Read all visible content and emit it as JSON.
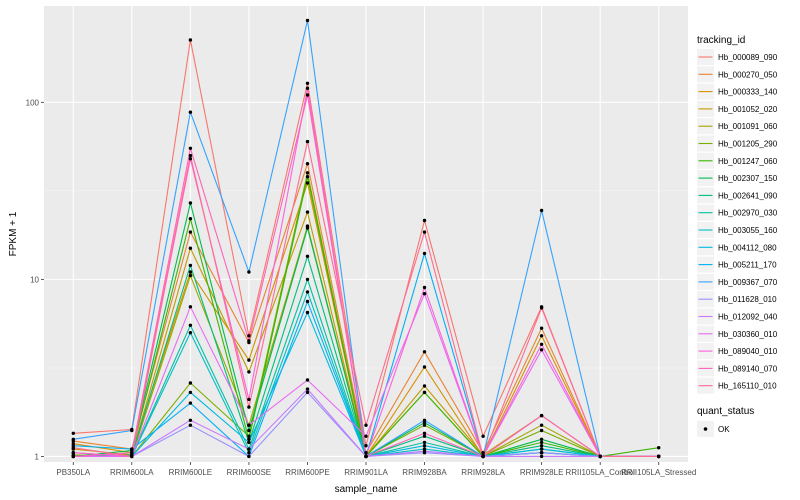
{
  "chart_data": {
    "type": "line",
    "xlabel": "sample_name",
    "ylabel": "FPKM + 1",
    "y_scale": "log10",
    "ylim": [
      0.93,
      350
    ],
    "y_ticks": [
      1,
      10,
      100
    ],
    "y_tick_labels": [
      "1",
      "10",
      "100"
    ],
    "categories": [
      "PB350LA",
      "RRIM600LA",
      "RRIM600LE",
      "RRIM600SE",
      "RRIM600PE",
      "RRIM901LA",
      "RRIM928BA",
      "RRIM928LA",
      "RRIM928LE",
      "RRII105LA_Control",
      "RRII105LA_Stressed"
    ],
    "legend": {
      "title": "tracking_id",
      "position": "right",
      "entries": [
        "Hb_000089_090",
        "Hb_000270_050",
        "Hb_000333_140",
        "Hb_001052_020",
        "Hb_001091_060",
        "Hb_001205_290",
        "Hb_001247_060",
        "Hb_002307_150",
        "Hb_002641_090",
        "Hb_002970_030",
        "Hb_003055_160",
        "Hb_004112_080",
        "Hb_005211_170",
        "Hb_009367_070",
        "Hb_011628_010",
        "Hb_012092_040",
        "Hb_030360_010",
        "Hb_089040_010",
        "Hb_089140_070",
        "Hb_165110_010"
      ]
    },
    "legend2": {
      "title": "quant_status",
      "entries": [
        "OK"
      ]
    },
    "grid": true,
    "series": [
      {
        "name": "Hb_000089_090",
        "color": "#F8766D",
        "values": [
          1.35,
          1.42,
          225,
          4.8,
          128,
          1.15,
          21.5,
          1.3,
          7.0,
          1.0,
          1.0
        ]
      },
      {
        "name": "Hb_000270_050",
        "color": "#EA8331",
        "values": [
          1.22,
          1.1,
          18.5,
          4.4,
          45,
          1.05,
          3.9,
          1.05,
          5.3,
          1.0,
          1.0
        ]
      },
      {
        "name": "Hb_000333_140",
        "color": "#D89000",
        "values": [
          1.18,
          1.05,
          11.0,
          3.5,
          35,
          1.0,
          3.2,
          1.0,
          4.8,
          1.0,
          1.0
        ]
      },
      {
        "name": "Hb_001052_020",
        "color": "#C09B00",
        "values": [
          1.1,
          1.02,
          15.0,
          3.0,
          24,
          1.0,
          2.5,
          1.02,
          1.7,
          1.0,
          1.0
        ]
      },
      {
        "name": "Hb_001091_060",
        "color": "#A3A500",
        "values": [
          1.05,
          1.0,
          10.5,
          1.5,
          20,
          1.0,
          2.3,
          1.0,
          1.5,
          1.0,
          1.0
        ]
      },
      {
        "name": "Hb_001205_290",
        "color": "#7CAE00",
        "values": [
          1.02,
          1.0,
          2.6,
          1.3,
          40,
          1.0,
          1.5,
          1.0,
          1.4,
          1.0,
          1.0
        ]
      },
      {
        "name": "Hb_001247_060",
        "color": "#39B600",
        "values": [
          1.0,
          1.05,
          22,
          1.25,
          38,
          1.0,
          2.3,
          1.0,
          1.2,
          1.0,
          1.12
        ]
      },
      {
        "name": "Hb_002307_150",
        "color": "#00BB4E",
        "values": [
          1.0,
          1.08,
          27,
          1.4,
          19.5,
          1.0,
          1.55,
          1.0,
          1.25,
          1.0,
          1.0
        ]
      },
      {
        "name": "Hb_002641_090",
        "color": "#00BF7D",
        "values": [
          1.0,
          1.02,
          12.0,
          1.2,
          13.5,
          1.0,
          1.3,
          1.0,
          1.15,
          1.0,
          1.0
        ]
      },
      {
        "name": "Hb_002970_030",
        "color": "#00C1A3",
        "values": [
          1.0,
          1.0,
          5.5,
          1.1,
          10,
          1.0,
          1.2,
          1.0,
          1.1,
          1.0,
          1.0
        ]
      },
      {
        "name": "Hb_003055_160",
        "color": "#00BFC4",
        "values": [
          1.0,
          1.0,
          5.0,
          1.05,
          8.5,
          1.0,
          1.1,
          1.0,
          1.05,
          1.0,
          1.0
        ]
      },
      {
        "name": "Hb_004112_080",
        "color": "#00BAE0",
        "values": [
          1.0,
          1.0,
          2.3,
          1.2,
          6.5,
          1.0,
          1.15,
          1.0,
          1.1,
          1.0,
          1.0
        ]
      },
      {
        "name": "Hb_005211_170",
        "color": "#00B0F6",
        "values": [
          1.15,
          1.1,
          2.0,
          1.0,
          7.5,
          1.0,
          14.0,
          1.0,
          1.05,
          1.0,
          1.0
        ]
      },
      {
        "name": "Hb_009367_070",
        "color": "#35A2FF",
        "values": [
          1.25,
          1.4,
          88,
          11.0,
          290,
          1.0,
          1.6,
          1.0,
          24.5,
          1.0,
          1.0
        ]
      },
      {
        "name": "Hb_011628_010",
        "color": "#9590FF",
        "values": [
          1.0,
          1.0,
          1.5,
          1.0,
          2.3,
          1.0,
          1.05,
          1.0,
          1.05,
          1.0,
          1.0
        ]
      },
      {
        "name": "Hb_012092_040",
        "color": "#C77CFF",
        "values": [
          1.0,
          1.0,
          1.6,
          1.1,
          2.4,
          1.0,
          1.07,
          1.0,
          1.0,
          1.0,
          1.0
        ]
      },
      {
        "name": "Hb_030360_010",
        "color": "#E76BF3",
        "values": [
          1.0,
          1.0,
          7.0,
          1.5,
          2.7,
          1.3,
          8.3,
          1.0,
          4.0,
          1.0,
          1.0
        ]
      },
      {
        "name": "Hb_089040_010",
        "color": "#FA62DB",
        "values": [
          1.05,
          1.0,
          48,
          2.1,
          120,
          1.0,
          9.0,
          1.0,
          4.3,
          1.0,
          1.0
        ]
      },
      {
        "name": "Hb_089140_070",
        "color": "#FF62BC",
        "values": [
          1.0,
          1.05,
          55,
          4.5,
          110,
          1.0,
          1.35,
          1.0,
          1.7,
          1.0,
          1.0
        ]
      },
      {
        "name": "Hb_165110_010",
        "color": "#FF6C91",
        "values": [
          1.12,
          1.0,
          50,
          1.9,
          60,
          1.5,
          18.5,
          1.0,
          6.9,
          1.0,
          1.0
        ]
      }
    ]
  }
}
